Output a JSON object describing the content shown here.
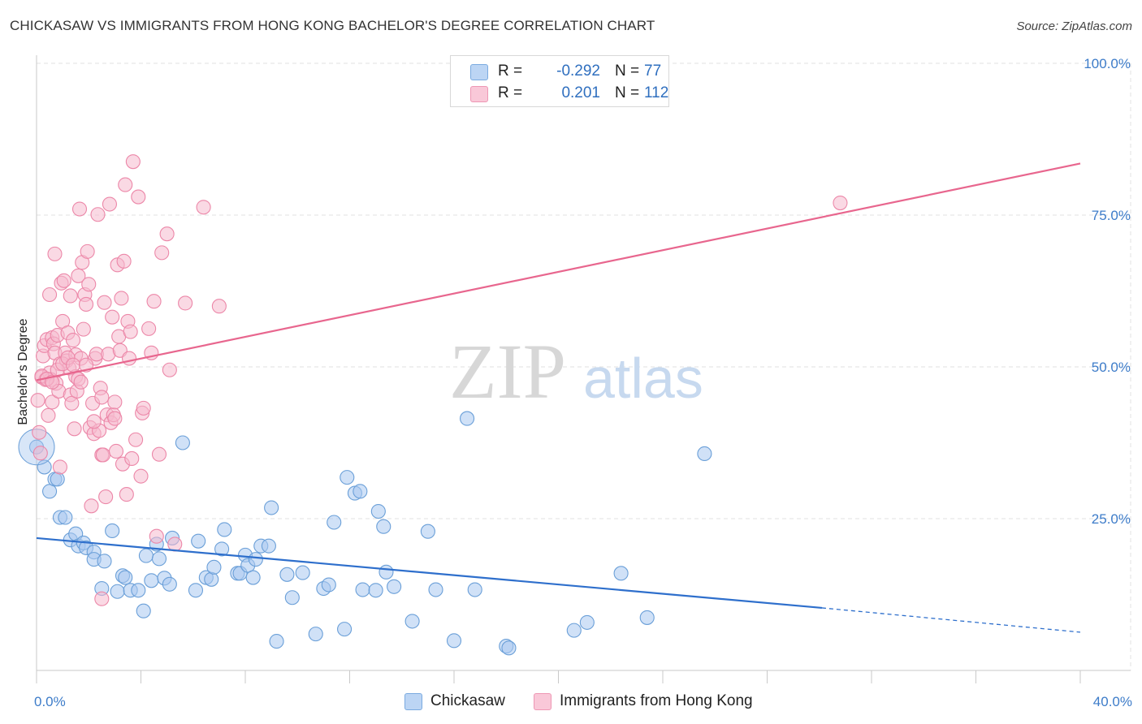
{
  "title": "CHICKASAW VS IMMIGRANTS FROM HONG KONG BACHELOR'S DEGREE CORRELATION CHART",
  "source": "Source: ZipAtlas.com",
  "watermark": {
    "zip": "ZIP",
    "atlas": "atlas"
  },
  "legend": {
    "r_label": "R =",
    "n_label": "N =",
    "series1": {
      "r": "-0.292",
      "n": "77"
    },
    "series2": {
      "r": "0.201",
      "n": "112"
    }
  },
  "colors": {
    "blue_fill": "#a9c8f0",
    "blue_stroke": "#6a9fd8",
    "blue_line": "#2e6fcc",
    "pink_fill": "#f6b9ce",
    "pink_stroke": "#ec87a8",
    "pink_line": "#e8668e",
    "tick_text": "#3d7cc9",
    "grid": "#e2e2e2"
  },
  "chart_data": {
    "type": "scatter",
    "title": "CHICKASAW VS IMMIGRANTS FROM HONG KONG BACHELOR'S DEGREE CORRELATION CHART",
    "xlabel": "",
    "ylabel": "Bachelor's Degree",
    "xlim": [
      0,
      40
    ],
    "ylim": [
      0,
      100
    ],
    "x_tick_labels": [
      "0.0%",
      "40.0%"
    ],
    "y_ticks": [
      25,
      50,
      75,
      100
    ],
    "y_tick_labels": [
      "25.0%",
      "50.0%",
      "75.0%",
      "100.0%"
    ],
    "grid": true,
    "series": [
      {
        "name": "Chickasaw",
        "color": "#a9c8f0",
        "r": -0.292,
        "n": 77,
        "trend": {
          "x": [
            0,
            30.1
          ],
          "y": [
            21.8,
            10.3
          ],
          "dashed_to": [
            40,
            6.3
          ]
        },
        "points": [
          [
            0,
            36.8
          ],
          [
            0.3,
            33.5
          ],
          [
            0.5,
            29.5
          ],
          [
            0.7,
            31.5
          ],
          [
            0.8,
            31.5
          ],
          [
            0.9,
            25.2
          ],
          [
            1.1,
            25.2
          ],
          [
            1.3,
            21.5
          ],
          [
            1.5,
            22.5
          ],
          [
            1.6,
            20.5
          ],
          [
            1.8,
            21.0
          ],
          [
            1.9,
            20.2
          ],
          [
            2.2,
            19.5
          ],
          [
            2.2,
            18.3
          ],
          [
            2.6,
            18.0
          ],
          [
            2.5,
            13.5
          ],
          [
            2.9,
            23.0
          ],
          [
            3.1,
            13.0
          ],
          [
            3.3,
            15.6
          ],
          [
            3.4,
            15.3
          ],
          [
            3.6,
            13.2
          ],
          [
            3.9,
            13.2
          ],
          [
            4.1,
            9.8
          ],
          [
            4.2,
            18.9
          ],
          [
            4.4,
            14.8
          ],
          [
            4.6,
            20.8
          ],
          [
            4.7,
            18.4
          ],
          [
            4.9,
            15.2
          ],
          [
            5.1,
            14.2
          ],
          [
            5.2,
            21.8
          ],
          [
            5.6,
            37.5
          ],
          [
            6.1,
            13.2
          ],
          [
            6.2,
            21.3
          ],
          [
            6.5,
            15.3
          ],
          [
            6.7,
            15.0
          ],
          [
            6.8,
            17.0
          ],
          [
            7.1,
            20.0
          ],
          [
            7.2,
            23.2
          ],
          [
            7.7,
            16.0
          ],
          [
            7.8,
            16.0
          ],
          [
            8.0,
            19.0
          ],
          [
            8.1,
            17.3
          ],
          [
            8.3,
            15.3
          ],
          [
            8.4,
            18.3
          ],
          [
            8.6,
            20.5
          ],
          [
            8.9,
            20.5
          ],
          [
            9.0,
            26.8
          ],
          [
            9.2,
            4.8
          ],
          [
            9.6,
            15.8
          ],
          [
            9.8,
            12.0
          ],
          [
            10.2,
            16.1
          ],
          [
            10.7,
            6.0
          ],
          [
            11.0,
            13.5
          ],
          [
            11.2,
            14.1
          ],
          [
            11.4,
            24.4
          ],
          [
            11.8,
            6.8
          ],
          [
            11.9,
            31.8
          ],
          [
            12.2,
            29.2
          ],
          [
            12.4,
            29.5
          ],
          [
            12.5,
            13.3
          ],
          [
            13.0,
            13.2
          ],
          [
            13.1,
            26.2
          ],
          [
            13.3,
            23.7
          ],
          [
            13.4,
            16.2
          ],
          [
            13.7,
            13.8
          ],
          [
            14.4,
            8.1
          ],
          [
            15.0,
            22.9
          ],
          [
            15.3,
            13.3
          ],
          [
            16.0,
            4.9
          ],
          [
            16.5,
            41.5
          ],
          [
            16.8,
            13.3
          ],
          [
            18.0,
            4.0
          ],
          [
            18.1,
            3.7
          ],
          [
            20.6,
            6.6
          ],
          [
            21.1,
            7.9
          ],
          [
            22.4,
            16.0
          ],
          [
            23.4,
            8.7
          ],
          [
            25.6,
            35.7
          ]
        ]
      },
      {
        "name": "Immigrants from Hong Kong",
        "color": "#f6b9ce",
        "r": 0.201,
        "n": 112,
        "trend": {
          "x": [
            0,
            40
          ],
          "y": [
            47.8,
            83.5
          ]
        },
        "points": [
          [
            0.05,
            44.5
          ],
          [
            0.1,
            39.2
          ],
          [
            0.15,
            35.8
          ],
          [
            0.2,
            48.3
          ],
          [
            0.25,
            51.8
          ],
          [
            0.3,
            53.5
          ],
          [
            0.35,
            47.9
          ],
          [
            0.4,
            54.5
          ],
          [
            0.45,
            42.0
          ],
          [
            0.5,
            49.0
          ],
          [
            0.5,
            61.9
          ],
          [
            0.55,
            47.9
          ],
          [
            0.6,
            54.8
          ],
          [
            0.6,
            44.2
          ],
          [
            0.65,
            53.8
          ],
          [
            0.7,
            68.6
          ],
          [
            0.7,
            52.3
          ],
          [
            0.75,
            47.3
          ],
          [
            0.8,
            55.2
          ],
          [
            0.85,
            46.0
          ],
          [
            0.9,
            50.5
          ],
          [
            0.9,
            33.5
          ],
          [
            0.95,
            63.8
          ],
          [
            1.0,
            57.5
          ],
          [
            1.05,
            64.2
          ],
          [
            1.1,
            52.3
          ],
          [
            1.15,
            51.0
          ],
          [
            1.2,
            55.6
          ],
          [
            1.25,
            49.8
          ],
          [
            1.3,
            45.4
          ],
          [
            1.3,
            61.7
          ],
          [
            1.35,
            44.0
          ],
          [
            1.4,
            54.4
          ],
          [
            1.45,
            39.8
          ],
          [
            1.5,
            48.4
          ],
          [
            1.5,
            52.0
          ],
          [
            1.55,
            46.0
          ],
          [
            1.6,
            65.0
          ],
          [
            1.6,
            48.0
          ],
          [
            1.65,
            76.0
          ],
          [
            1.7,
            51.4
          ],
          [
            1.75,
            67.2
          ],
          [
            1.8,
            56.2
          ],
          [
            1.85,
            61.9
          ],
          [
            1.9,
            60.3
          ],
          [
            1.95,
            69.0
          ],
          [
            2.0,
            63.6
          ],
          [
            2.05,
            40.0
          ],
          [
            2.1,
            27.1
          ],
          [
            2.15,
            44.0
          ],
          [
            2.2,
            39.0
          ],
          [
            2.25,
            51.4
          ],
          [
            2.3,
            52.1
          ],
          [
            2.35,
            75.1
          ],
          [
            2.4,
            39.5
          ],
          [
            2.45,
            46.5
          ],
          [
            2.5,
            11.8
          ],
          [
            2.5,
            35.5
          ],
          [
            2.55,
            35.5
          ],
          [
            2.6,
            60.6
          ],
          [
            2.65,
            28.6
          ],
          [
            2.7,
            42.1
          ],
          [
            2.75,
            52.1
          ],
          [
            2.8,
            76.8
          ],
          [
            2.85,
            40.8
          ],
          [
            2.9,
            58.2
          ],
          [
            2.95,
            42.1
          ],
          [
            3.0,
            44.2
          ],
          [
            3.05,
            36.1
          ],
          [
            3.1,
            66.8
          ],
          [
            3.15,
            55.0
          ],
          [
            3.2,
            52.7
          ],
          [
            3.25,
            61.3
          ],
          [
            3.3,
            34.0
          ],
          [
            3.35,
            67.4
          ],
          [
            3.4,
            80.0
          ],
          [
            3.45,
            29.0
          ],
          [
            3.5,
            57.5
          ],
          [
            3.55,
            51.4
          ],
          [
            3.6,
            55.8
          ],
          [
            3.65,
            34.9
          ],
          [
            3.7,
            83.8
          ],
          [
            3.8,
            38.0
          ],
          [
            3.9,
            78.0
          ],
          [
            4.0,
            32.0
          ],
          [
            4.05,
            42.4
          ],
          [
            4.1,
            43.2
          ],
          [
            4.3,
            56.3
          ],
          [
            4.4,
            52.3
          ],
          [
            4.5,
            60.8
          ],
          [
            4.6,
            22.1
          ],
          [
            4.7,
            35.6
          ],
          [
            4.8,
            68.8
          ],
          [
            5.0,
            71.9
          ],
          [
            5.1,
            49.5
          ],
          [
            5.3,
            20.8
          ],
          [
            5.7,
            60.5
          ],
          [
            6.4,
            76.3
          ],
          [
            7.0,
            60.0
          ],
          [
            30.8,
            77.0
          ],
          [
            0.2,
            48.5
          ],
          [
            0.4,
            48.0
          ],
          [
            0.6,
            47.5
          ],
          [
            0.8,
            49.5
          ],
          [
            1.0,
            50.5
          ],
          [
            1.2,
            51.5
          ],
          [
            1.4,
            50.3
          ],
          [
            1.7,
            47.5
          ],
          [
            1.9,
            50.3
          ],
          [
            2.2,
            41.0
          ],
          [
            2.5,
            45.0
          ],
          [
            3.0,
            41.5
          ]
        ]
      }
    ]
  },
  "bottom_legend": [
    "Chickasaw",
    "Immigrants from Hong Kong"
  ]
}
